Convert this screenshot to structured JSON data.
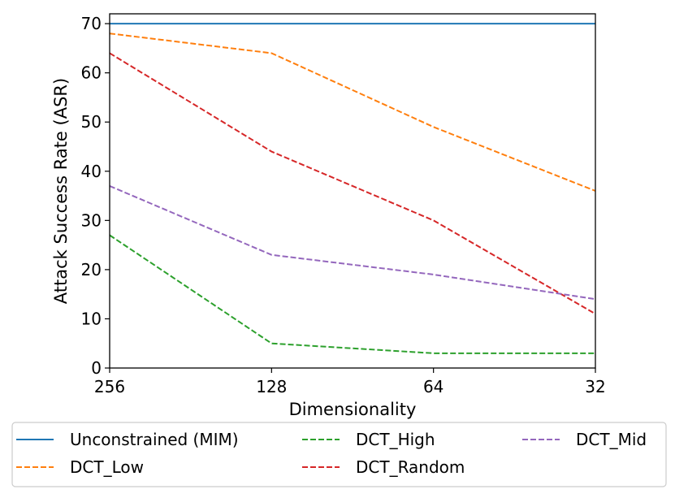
{
  "chart_data": {
    "type": "line",
    "title": "",
    "xlabel": "Dimensionality",
    "ylabel": "Attack Success Rate (ASR)",
    "x": [
      256,
      128,
      64,
      32
    ],
    "x_tick_labels": [
      "256",
      "128",
      "64",
      "32"
    ],
    "x_scale": "log2-reversed",
    "ylim": [
      0,
      72
    ],
    "y_ticks": [
      0,
      10,
      20,
      30,
      40,
      50,
      60,
      70
    ],
    "y_tick_labels": [
      "0",
      "10",
      "20",
      "30",
      "40",
      "50",
      "60",
      "70"
    ],
    "grid": false,
    "legend_position": "bottom-outside",
    "legend_columns": 3,
    "series": [
      {
        "name": "Unconstrained (MIM)",
        "values": [
          70,
          70,
          70,
          70
        ],
        "color": "#1f77b4",
        "linestyle": "solid"
      },
      {
        "name": "DCT_Low",
        "values": [
          68,
          64,
          49,
          36
        ],
        "color": "#ff7f0e",
        "linestyle": "dashed"
      },
      {
        "name": "DCT_High",
        "values": [
          27,
          5,
          3,
          3
        ],
        "color": "#2ca02c",
        "linestyle": "dashed"
      },
      {
        "name": "DCT_Random",
        "values": [
          64,
          44,
          30,
          11
        ],
        "color": "#d62728",
        "linestyle": "dashed"
      },
      {
        "name": "DCT_Mid",
        "values": [
          37,
          23,
          19,
          14
        ],
        "color": "#9467bd",
        "linestyle": "dashed"
      }
    ]
  }
}
